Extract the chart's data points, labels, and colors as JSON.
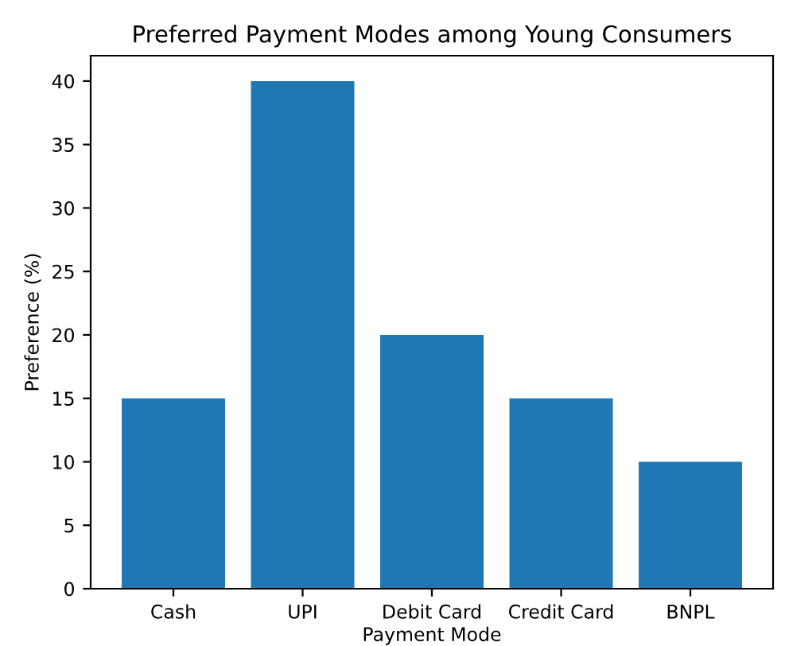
{
  "chart_data": {
    "type": "bar",
    "title": "Preferred Payment Modes among Young Consumers",
    "xlabel": "Payment Mode",
    "ylabel": "Preference (%)",
    "categories": [
      "Cash",
      "UPI",
      "Debit Card",
      "Credit Card",
      "BNPL"
    ],
    "values": [
      15,
      40,
      20,
      15,
      10
    ],
    "color": "#1f77b4",
    "ylim": [
      0,
      42
    ],
    "yticks": [
      0,
      5,
      10,
      15,
      20,
      25,
      30,
      35,
      40
    ],
    "grid": false
  }
}
